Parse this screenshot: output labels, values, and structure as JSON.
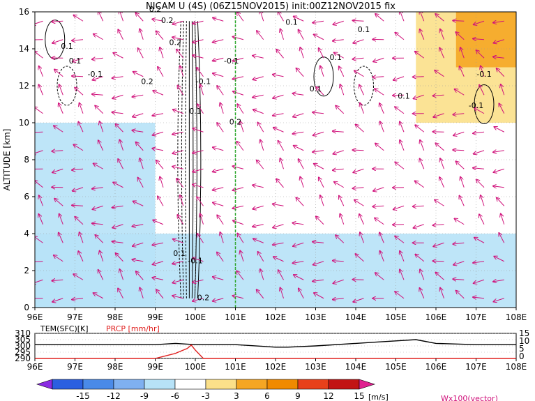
{
  "title": "NICAM U (4S) (06Z15NOV2015) init:00Z12NOV2015 fix",
  "main_panel": {
    "ylabel": "ALTITUDE [km]",
    "ylim": [
      0,
      16
    ],
    "xlim": [
      96,
      108
    ],
    "yticks": [
      "0",
      "2",
      "4",
      "6",
      "8",
      "10",
      "12",
      "14",
      "16"
    ],
    "xticks": [
      "96E",
      "97E",
      "98E",
      "99E",
      "100E",
      "101E",
      "102E",
      "103E",
      "104E",
      "105E",
      "106E",
      "107E",
      "108E"
    ],
    "contour_labels": [
      "0.1",
      "0.1",
      "-0.1",
      "0.2",
      "0.2",
      "0.2",
      "0.2",
      "-0.1",
      "0.1",
      "0.2",
      "0.1",
      "0.1",
      "0.1",
      "0.1",
      "0.1",
      "-0.1",
      "0.2",
      "-0.1",
      "-0.1",
      "0.1",
      "-0.1"
    ]
  },
  "bottom_panel": {
    "left_label": "TEM(SFC)[K]",
    "right_label": "PRCP [mm/hr]",
    "left_ticks": [
      "310",
      "305",
      "300",
      "295",
      "290"
    ],
    "right_ticks": [
      "15",
      "10",
      "5",
      "0"
    ],
    "xticks": [
      "96E",
      "97E",
      "98E",
      "99E",
      "100E",
      "101E",
      "102E",
      "103E",
      "104E",
      "105E",
      "106E",
      "107E",
      "108E"
    ]
  },
  "colorbar": {
    "labels": [
      "-15",
      "-12",
      "-9",
      "-6",
      "-3",
      "3",
      "6",
      "9",
      "12",
      "15"
    ],
    "unit": "[m/s]",
    "colors": [
      "#8a2be2",
      "#2b5fe0",
      "#4a8ae8",
      "#7fb0f0",
      "#b7e2f7",
      "#ffffff",
      "#fbe08a",
      "#f5a623",
      "#f08a00",
      "#e8401a",
      "#c21414",
      "#e02090"
    ]
  },
  "vector_label": "Wx100(vector)",
  "chart_data": {
    "type": "heatmap",
    "title": "NICAM U (4S) (06Z15NOV2015) init:00Z12NOV2015 fix",
    "xlabel": "",
    "ylabel": "ALTITUDE [km]",
    "x_range": [
      96,
      108
    ],
    "y_range": [
      0,
      16
    ],
    "field": "U [m/s]",
    "regions": [
      {
        "lon": [
          96,
          99
        ],
        "alt": [
          0,
          10
        ],
        "u": -5
      },
      {
        "lon": [
          96,
          108
        ],
        "alt": [
          0,
          4
        ],
        "u": -5
      },
      {
        "lon": [
          101,
          106
        ],
        "alt": [
          4,
          9
        ],
        "u": -2
      },
      {
        "lon": [
          105.5,
          108
        ],
        "alt": [
          10,
          16
        ],
        "u": 5
      },
      {
        "lon": [
          106.5,
          108
        ],
        "alt": [
          13,
          16
        ],
        "u": 7
      }
    ],
    "marker_line_lon": 101,
    "temperature_sfc": {
      "x": [
        96,
        97,
        98,
        99,
        99.5,
        100,
        100.5,
        101,
        102,
        102.3,
        103,
        104,
        104.5,
        105,
        105.5,
        106,
        107,
        108
      ],
      "y": [
        301,
        301,
        301,
        301,
        302,
        301,
        301,
        301,
        299,
        299,
        300,
        302,
        303,
        304,
        305,
        302,
        301,
        301
      ]
    },
    "precipitation": {
      "x": [
        96,
        99,
        99.5,
        99.8,
        99.9,
        100.0,
        100.2,
        101,
        108
      ],
      "y": [
        0,
        0,
        3,
        6,
        8,
        5,
        0,
        0,
        0
      ]
    }
  }
}
